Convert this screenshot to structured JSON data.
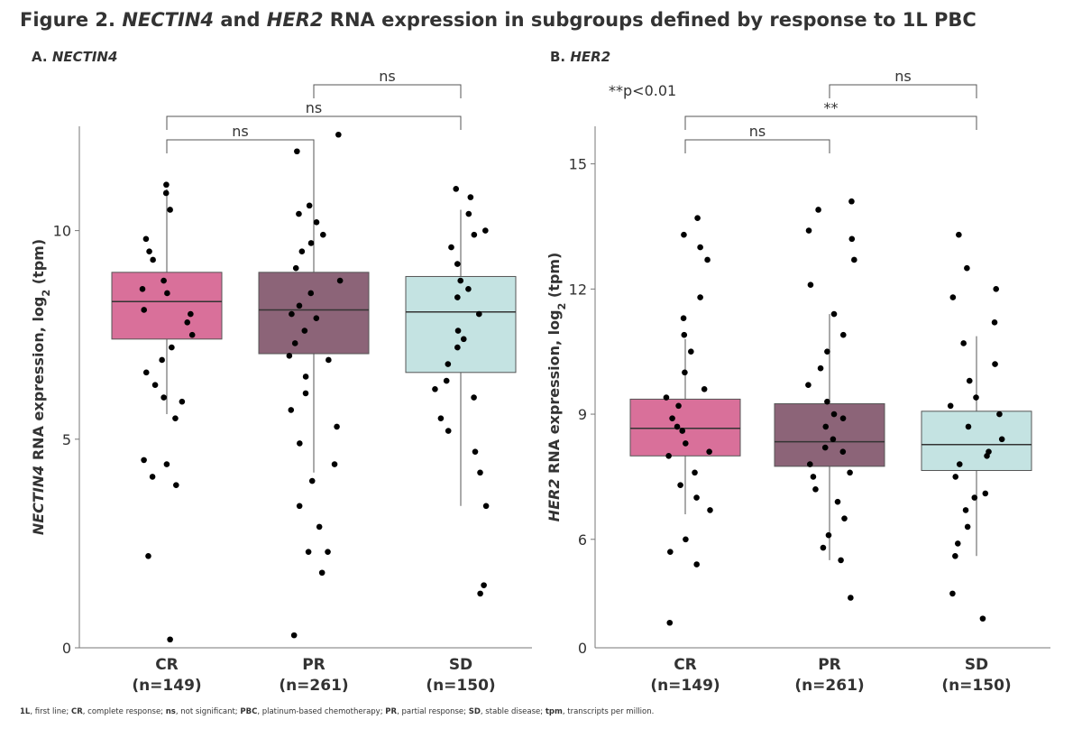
{
  "figure_title": [
    {
      "text": "Figure 2. "
    },
    {
      "text": "NECTIN4",
      "italic": true
    },
    {
      "text": " and "
    },
    {
      "text": "HER2",
      "italic": true
    },
    {
      "text": " RNA expression in subgroups defined by response to 1L PBC"
    }
  ],
  "footnote": [
    {
      "text": "1L",
      "bold": true
    },
    {
      "text": ", first line; "
    },
    {
      "text": "CR",
      "bold": true
    },
    {
      "text": ", complete response; "
    },
    {
      "text": "ns",
      "bold": true
    },
    {
      "text": ", not significant; "
    },
    {
      "text": "PBC",
      "bold": true
    },
    {
      "text": ", platinum-based chemotherapy; "
    },
    {
      "text": "PR",
      "bold": true
    },
    {
      "text": ", partial response; "
    },
    {
      "text": "SD",
      "bold": true
    },
    {
      "text": ", stable disease; "
    },
    {
      "text": "tpm",
      "bold": true
    },
    {
      "text": ", transcripts per million."
    }
  ],
  "chart_data": [
    {
      "type": "box",
      "title": [
        {
          "text": "A. "
        },
        {
          "text": "NECTIN4",
          "italic": true
        }
      ],
      "y_label": [
        {
          "text": "NECTIN4",
          "italic": true
        },
        {
          "text": " RNA expression, log"
        },
        {
          "text": "2",
          "sub": true
        },
        {
          "text": " (tpm)"
        }
      ],
      "ylim": [
        0,
        12.5
      ],
      "yticks": [
        0,
        5,
        10
      ],
      "groups": [
        {
          "name": "CR",
          "n_label": "(n=149)",
          "color": "#d9709a",
          "whisker_low": 5.6,
          "q1": 7.4,
          "median": 8.3,
          "q3": 9.0,
          "whisker_high": 11.0,
          "points": [
            11.1,
            10.5,
            9.8,
            9.3,
            8.8,
            8.5,
            8.1,
            7.8,
            7.2,
            6.9,
            6.3,
            5.9,
            5.5,
            4.5,
            4.4,
            4.1,
            3.9,
            2.2,
            0.2,
            10.9,
            9.5,
            8.6,
            8.0,
            7.5,
            6.6,
            6.0
          ]
        },
        {
          "name": "PR",
          "n_label": "(n=261)",
          "color": "#8c6478",
          "whisker_low": 4.2,
          "q1": 7.05,
          "median": 8.1,
          "q3": 9.0,
          "whisker_high": 11.9,
          "points": [
            12.3,
            11.9,
            10.6,
            10.2,
            9.9,
            9.5,
            9.1,
            8.8,
            8.5,
            8.2,
            7.9,
            7.6,
            7.3,
            6.9,
            6.5,
            6.1,
            5.7,
            5.3,
            4.9,
            4.4,
            4.0,
            3.4,
            2.9,
            2.3,
            2.3,
            1.8,
            0.3,
            10.4,
            9.7,
            8.0,
            7.0
          ]
        },
        {
          "name": "SD",
          "n_label": "(n=150)",
          "color": "#c4e3e2",
          "whisker_low": 3.4,
          "q1": 6.6,
          "median": 8.05,
          "q3": 8.9,
          "whisker_high": 10.5,
          "points": [
            11.0,
            10.8,
            10.4,
            10.0,
            9.6,
            9.2,
            8.8,
            8.4,
            8.0,
            7.6,
            7.2,
            6.8,
            6.4,
            6.0,
            5.5,
            5.2,
            4.7,
            4.2,
            3.4,
            1.5,
            1.3,
            9.9,
            8.6,
            7.4,
            6.2
          ]
        }
      ],
      "comparisons": [
        {
          "between": [
            "CR",
            "PR"
          ],
          "label": "ns"
        },
        {
          "between": [
            "CR",
            "SD"
          ],
          "label": "ns"
        },
        {
          "between": [
            "PR",
            "SD"
          ],
          "label": "ns"
        }
      ]
    },
    {
      "type": "box",
      "title": [
        {
          "text": "B. "
        },
        {
          "text": "HER2",
          "italic": true
        }
      ],
      "y_label": [
        {
          "text": "HER2",
          "italic": true
        },
        {
          "text": " RNA expression, log"
        },
        {
          "text": "2",
          "sub": true
        },
        {
          "text": " (tpm)"
        }
      ],
      "annotation": "**p<0.01",
      "ylim": [
        3.4,
        15.9
      ],
      "yticks": [
        6,
        9,
        12,
        15
      ],
      "y_axis_break_label": "0",
      "groups": [
        {
          "name": "CR",
          "n_label": "(n=149)",
          "color": "#d9709a",
          "whisker_low": 6.6,
          "q1": 8.0,
          "median": 8.66,
          "q3": 9.36,
          "whisker_high": 10.8,
          "points": [
            13.7,
            13.3,
            13.0,
            12.7,
            11.8,
            11.3,
            10.9,
            10.5,
            10.0,
            9.6,
            9.2,
            8.9,
            8.6,
            8.3,
            8.0,
            7.6,
            7.3,
            7.0,
            6.7,
            6.0,
            5.7,
            5.4,
            4.0,
            9.4,
            8.7,
            8.1
          ]
        },
        {
          "name": "PR",
          "n_label": "(n=261)",
          "color": "#8c6478",
          "whisker_low": 5.5,
          "q1": 7.75,
          "median": 8.34,
          "q3": 9.25,
          "whisker_high": 11.4,
          "points": [
            14.1,
            13.9,
            13.4,
            13.2,
            12.7,
            12.1,
            11.4,
            10.9,
            10.5,
            10.1,
            9.7,
            9.3,
            9.0,
            8.7,
            8.4,
            8.1,
            7.8,
            7.5,
            7.2,
            6.9,
            6.5,
            6.1,
            5.8,
            5.5,
            4.6,
            8.9,
            8.2,
            7.6
          ]
        },
        {
          "name": "SD",
          "n_label": "(n=150)",
          "color": "#c4e3e2",
          "whisker_low": 5.6,
          "q1": 7.65,
          "median": 8.27,
          "q3": 9.07,
          "whisker_high": 10.87,
          "points": [
            13.3,
            12.5,
            12.0,
            11.8,
            11.2,
            10.7,
            10.2,
            9.8,
            9.4,
            9.0,
            8.7,
            8.4,
            8.1,
            7.8,
            7.5,
            7.1,
            6.7,
            6.3,
            5.9,
            5.6,
            4.7,
            4.1,
            9.2,
            8.0,
            7.0
          ]
        }
      ],
      "comparisons": [
        {
          "between": [
            "CR",
            "PR"
          ],
          "label": "ns"
        },
        {
          "between": [
            "CR",
            "SD"
          ],
          "label": "**"
        },
        {
          "between": [
            "PR",
            "SD"
          ],
          "label": "ns"
        }
      ]
    }
  ]
}
